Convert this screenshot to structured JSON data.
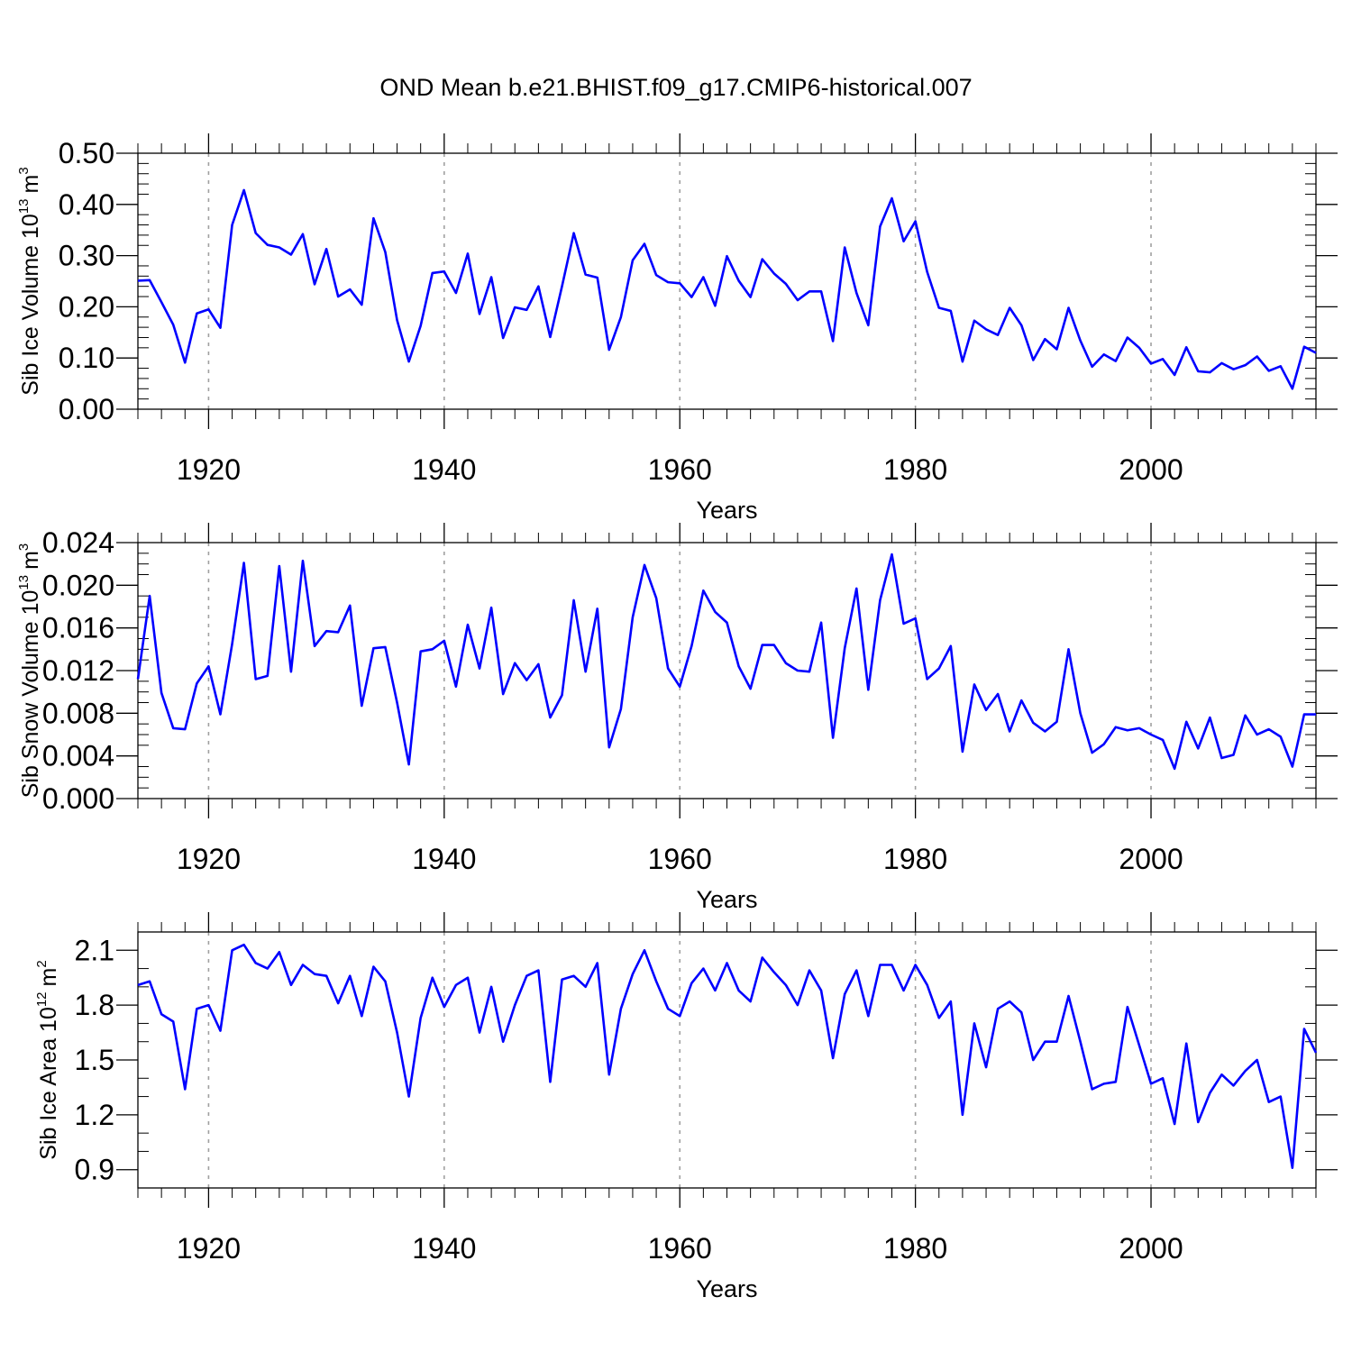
{
  "chart_data": {
    "title": "OND Mean b.e21.BHIST.f09_g17.CMIP6-historical.007",
    "series_color": "#0000ff",
    "grid_color": "#a0a0a0",
    "start_year": 1914,
    "panels": [
      {
        "type": "line",
        "ylabel_prefix": "Sib Ice Volume 10",
        "ylabel_exponent": "13",
        "ylabel_unit": "m",
        "ylabel_unit_exponent": "3",
        "xlabel": "Years",
        "xlim": [
          1914,
          2014
        ],
        "ylim": [
          0.0,
          0.5
        ],
        "yticks": [
          0.0,
          0.1,
          0.2,
          0.3,
          0.4,
          0.5
        ],
        "ytick_labels": [
          "0.00",
          "0.10",
          "0.20",
          "0.30",
          "0.40",
          "0.50"
        ],
        "yminor_step": 0.02,
        "xticks": [
          1920,
          1940,
          1960,
          1980,
          2000
        ],
        "xtick_labels": [
          "1920",
          "1940",
          "1960",
          "1980",
          "2000"
        ],
        "values": [
          0.251,
          0.252,
          0.209,
          0.165,
          0.091,
          0.187,
          0.195,
          0.159,
          0.36,
          0.428,
          0.344,
          0.321,
          0.316,
          0.302,
          0.342,
          0.244,
          0.313,
          0.22,
          0.234,
          0.204,
          0.373,
          0.307,
          0.174,
          0.093,
          0.163,
          0.266,
          0.269,
          0.227,
          0.304,
          0.186,
          0.258,
          0.139,
          0.199,
          0.194,
          0.24,
          0.141,
          0.24,
          0.344,
          0.263,
          0.257,
          0.116,
          0.18,
          0.291,
          0.323,
          0.262,
          0.248,
          0.246,
          0.219,
          0.258,
          0.202,
          0.299,
          0.251,
          0.219,
          0.293,
          0.265,
          0.245,
          0.213,
          0.23,
          0.23,
          0.133,
          0.316,
          0.227,
          0.164,
          0.357,
          0.412,
          0.328,
          0.367,
          0.268,
          0.198,
          0.192,
          0.093,
          0.173,
          0.156,
          0.145,
          0.198,
          0.164,
          0.096,
          0.137,
          0.117,
          0.198,
          0.134,
          0.083,
          0.107,
          0.094,
          0.14,
          0.12,
          0.089,
          0.098,
          0.067,
          0.121,
          0.074,
          0.072,
          0.09,
          0.078,
          0.086,
          0.103,
          0.075,
          0.084,
          0.04,
          0.122,
          0.11
        ]
      },
      {
        "type": "line",
        "ylabel_prefix": "Sib Snow Volume 10",
        "ylabel_exponent": "13",
        "ylabel_unit": "m",
        "ylabel_unit_exponent": "3",
        "xlabel": "Years",
        "xlim": [
          1914,
          2014
        ],
        "ylim": [
          0.0,
          0.024
        ],
        "yticks": [
          0.0,
          0.004,
          0.008,
          0.012,
          0.016,
          0.02,
          0.024
        ],
        "ytick_labels": [
          "0.000",
          "0.004",
          "0.008",
          "0.012",
          "0.016",
          "0.020",
          "0.024"
        ],
        "yminor_step": 0.001,
        "xticks": [
          1920,
          1940,
          1960,
          1980,
          2000
        ],
        "xtick_labels": [
          "1920",
          "1940",
          "1960",
          "1980",
          "2000"
        ],
        "values": [
          0.0112,
          0.019,
          0.0099,
          0.0066,
          0.0065,
          0.0108,
          0.0124,
          0.0079,
          0.0145,
          0.0221,
          0.0112,
          0.0115,
          0.0218,
          0.0119,
          0.0223,
          0.0143,
          0.0157,
          0.0156,
          0.0181,
          0.0087,
          0.0141,
          0.0142,
          0.009,
          0.0032,
          0.0138,
          0.014,
          0.0148,
          0.0105,
          0.0163,
          0.0122,
          0.0179,
          0.0098,
          0.0127,
          0.0111,
          0.0126,
          0.0076,
          0.0097,
          0.0186,
          0.0119,
          0.0178,
          0.0048,
          0.0084,
          0.017,
          0.0219,
          0.0188,
          0.0122,
          0.0105,
          0.0143,
          0.0195,
          0.0175,
          0.0165,
          0.0124,
          0.0103,
          0.0144,
          0.0144,
          0.0127,
          0.012,
          0.0119,
          0.0165,
          0.0057,
          0.0141,
          0.0197,
          0.0102,
          0.0186,
          0.0229,
          0.0164,
          0.0169,
          0.0112,
          0.0122,
          0.0143,
          0.0044,
          0.0107,
          0.0083,
          0.0098,
          0.0063,
          0.0092,
          0.0071,
          0.0063,
          0.0072,
          0.014,
          0.008,
          0.0043,
          0.0051,
          0.0067,
          0.0064,
          0.0066,
          0.006,
          0.0055,
          0.0028,
          0.0072,
          0.0047,
          0.0076,
          0.0038,
          0.0041,
          0.0078,
          0.006,
          0.0065,
          0.0058,
          0.003,
          0.0079,
          0.0079
        ]
      },
      {
        "type": "line",
        "ylabel_prefix": "Sib Ice Area 10",
        "ylabel_exponent": "12",
        "ylabel_unit": "m",
        "ylabel_unit_exponent": "2",
        "xlabel": "Years",
        "xlim": [
          1914,
          2014
        ],
        "ylim": [
          0.8,
          2.2
        ],
        "yticks": [
          0.9,
          1.2,
          1.5,
          1.8,
          2.1
        ],
        "ytick_labels": [
          "0.9",
          "1.2",
          "1.5",
          "1.8",
          "2.1"
        ],
        "yminor_step": 0.1,
        "xticks": [
          1920,
          1940,
          1960,
          1980,
          2000
        ],
        "xtick_labels": [
          "1920",
          "1940",
          "1960",
          "1980",
          "2000"
        ],
        "values": [
          1.91,
          1.93,
          1.75,
          1.71,
          1.34,
          1.78,
          1.8,
          1.66,
          2.1,
          2.13,
          2.03,
          2.0,
          2.09,
          1.91,
          2.02,
          1.97,
          1.96,
          1.81,
          1.96,
          1.74,
          2.01,
          1.93,
          1.65,
          1.3,
          1.73,
          1.95,
          1.79,
          1.91,
          1.95,
          1.65,
          1.9,
          1.6,
          1.8,
          1.96,
          1.99,
          1.38,
          1.94,
          1.96,
          1.9,
          2.03,
          1.42,
          1.78,
          1.97,
          2.1,
          1.93,
          1.78,
          1.74,
          1.92,
          2.0,
          1.88,
          2.03,
          1.88,
          1.82,
          2.06,
          1.98,
          1.91,
          1.8,
          1.99,
          1.88,
          1.51,
          1.86,
          1.99,
          1.74,
          2.02,
          2.02,
          1.88,
          2.02,
          1.91,
          1.73,
          1.82,
          1.2,
          1.7,
          1.46,
          1.78,
          1.82,
          1.76,
          1.5,
          1.6,
          1.6,
          1.85,
          1.6,
          1.34,
          1.37,
          1.38,
          1.79,
          1.58,
          1.37,
          1.4,
          1.15,
          1.59,
          1.16,
          1.32,
          1.42,
          1.36,
          1.44,
          1.5,
          1.27,
          1.3,
          0.91,
          1.67,
          1.54
        ]
      }
    ]
  }
}
